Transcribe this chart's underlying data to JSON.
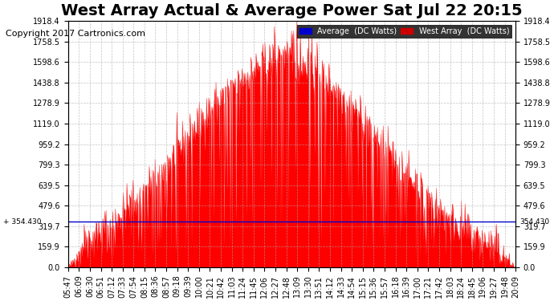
{
  "title": "West Array Actual & Average Power Sat Jul 22 20:15",
  "copyright": "Copyright 2017 Cartronics.com",
  "avg_value": 354.43,
  "y_max": 1918.4,
  "y_min": 0.0,
  "y_ticks": [
    0.0,
    159.9,
    319.7,
    479.6,
    639.5,
    799.3,
    959.2,
    1119.0,
    1278.9,
    1438.8,
    1598.6,
    1758.5,
    1918.4
  ],
  "y_tick_labels": [
    "0.0",
    "159.9",
    "319.7",
    "479.6",
    "639.5",
    "799.3",
    "959.2",
    "1119.0",
    "1278.9",
    "1438.8",
    "1598.6",
    "1758.5",
    "1918.4"
  ],
  "x_labels": [
    "05:47",
    "06:09",
    "06:30",
    "06:51",
    "07:12",
    "07:33",
    "07:54",
    "08:15",
    "08:36",
    "08:57",
    "09:18",
    "09:39",
    "10:00",
    "10:21",
    "10:42",
    "11:03",
    "11:24",
    "11:45",
    "12:06",
    "12:27",
    "12:48",
    "13:09",
    "13:30",
    "13:51",
    "14:12",
    "14:33",
    "14:54",
    "15:15",
    "15:36",
    "15:57",
    "16:18",
    "16:39",
    "17:00",
    "17:21",
    "17:42",
    "18:03",
    "18:24",
    "18:45",
    "19:06",
    "19:27",
    "19:48",
    "20:09"
  ],
  "bg_color": "#ffffff",
  "plot_bg_color": "#ffffff",
  "grid_color": "#aaaaaa",
  "area_color": "#ff0000",
  "avg_line_color": "#0000cc",
  "legend_avg_bg": "#0000cc",
  "legend_west_bg": "#cc0000",
  "legend_avg_text": "Average  (DC Watts)",
  "legend_west_text": "West Array  (DC Watts)",
  "title_fontsize": 14,
  "tick_fontsize": 7,
  "copyright_fontsize": 8
}
